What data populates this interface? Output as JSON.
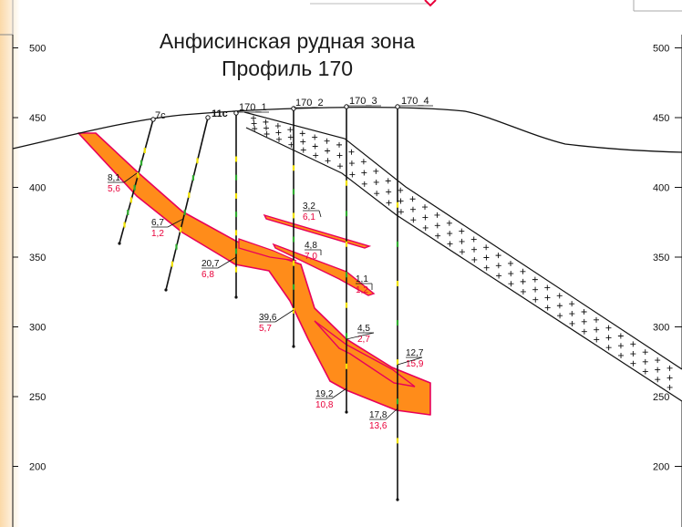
{
  "title": "Анфисинская рудная зона",
  "subtitle": "Профиль 170",
  "colors": {
    "ore_fill": "#ff8c1a",
    "ore_stroke": "#e8005a",
    "grade_label": "#e8003a",
    "line": "#111111"
  },
  "chart_data": {
    "type": "cross-section",
    "y_axis": {
      "ticks": [
        500,
        450,
        400,
        350,
        300,
        250,
        200
      ],
      "ylim": [
        170,
        550
      ]
    },
    "boreholes": [
      {
        "name": "7c"
      },
      {
        "name": "11c"
      },
      {
        "name": "170_1"
      },
      {
        "name": "170_2"
      },
      {
        "name": "170_3"
      },
      {
        "name": "170_4"
      }
    ],
    "intercepts": [
      {
        "thickness": "8,1",
        "grade": "5,6"
      },
      {
        "thickness": "6,7",
        "grade": "1,2"
      },
      {
        "thickness": "20,7",
        "grade": "6,8"
      },
      {
        "thickness": "39,6",
        "grade": "5,7"
      },
      {
        "thickness": "3,2",
        "grade": "6,1"
      },
      {
        "thickness": "4,8",
        "grade": "7,0"
      },
      {
        "thickness": "1,1",
        "grade": "1,2"
      },
      {
        "thickness": "4,5",
        "grade": "2,7"
      },
      {
        "thickness": "19,2",
        "grade": "10,8"
      },
      {
        "thickness": "12,7",
        "grade": "15,9"
      },
      {
        "thickness": "17,8",
        "grade": "13,6"
      }
    ]
  }
}
